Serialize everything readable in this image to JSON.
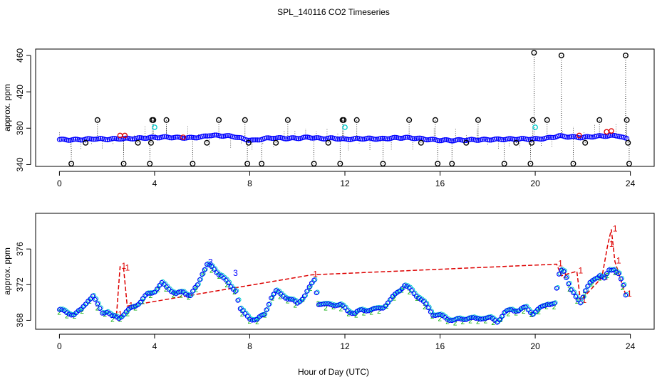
{
  "title": "SPL_140116  CO2 Timeseries",
  "xlabel": "Hour of Day (UTC)",
  "colors": {
    "black": "#000000",
    "red": "#dd0000",
    "blue": "#0000ff",
    "cyan": "#00cccc",
    "green": "#00aa00"
  },
  "chart_data": [
    {
      "type": "scatter",
      "name": "top-panel",
      "ylabel": "approx. ppm",
      "xlim": [
        -1,
        25
      ],
      "ylim": [
        338,
        467
      ],
      "xticks": [
        0,
        4,
        8,
        12,
        16,
        20,
        24
      ],
      "yticks": [
        340,
        380,
        420,
        460
      ],
      "baseline": [
        [
          0,
          367.5
        ],
        [
          0.5,
          367.2
        ],
        [
          1,
          367.6
        ],
        [
          1.5,
          368.4
        ],
        [
          2,
          367.8
        ],
        [
          2.5,
          368.5
        ],
        [
          3,
          368.6
        ],
        [
          3.5,
          369.2
        ],
        [
          4,
          369.8
        ],
        [
          4.5,
          370.2
        ],
        [
          5,
          369.6
        ],
        [
          5.5,
          369.4
        ],
        [
          6,
          370.4
        ],
        [
          6.3,
          372.2
        ],
        [
          6.7,
          371.8
        ],
        [
          7,
          371.6
        ],
        [
          7.4,
          370.6
        ],
        [
          7.8,
          367.8
        ],
        [
          8.2,
          366.4
        ],
        [
          8.6,
          368.6
        ],
        [
          9,
          369.4
        ],
        [
          9.5,
          368.8
        ],
        [
          10,
          369.0
        ],
        [
          10.5,
          370.0
        ],
        [
          11,
          368.6
        ],
        [
          11.5,
          369.0
        ],
        [
          12,
          367.8
        ],
        [
          12.5,
          368.4
        ],
        [
          13,
          368.6
        ],
        [
          13.5,
          368.2
        ],
        [
          14,
          369.2
        ],
        [
          14.5,
          369.6
        ],
        [
          15,
          369.0
        ],
        [
          15.5,
          367.6
        ],
        [
          16,
          366.8
        ],
        [
          16.5,
          366.6
        ],
        [
          17,
          367.0
        ],
        [
          17.5,
          367.2
        ],
        [
          18,
          367.4
        ],
        [
          18.5,
          367.8
        ],
        [
          19,
          368.0
        ],
        [
          19.5,
          368.2
        ],
        [
          20,
          368.0
        ],
        [
          20.5,
          369.0
        ],
        [
          21,
          371.4
        ],
        [
          21.5,
          370.4
        ],
        [
          22,
          369.8
        ],
        [
          22.5,
          371.0
        ],
        [
          23,
          371.6
        ],
        [
          23.5,
          371.8
        ],
        [
          23.8,
          368.5
        ]
      ],
      "black_outliers": [
        [
          0.5,
          341
        ],
        [
          1.1,
          364
        ],
        [
          1.6,
          389
        ],
        [
          2.7,
          341
        ],
        [
          3.3,
          364
        ],
        [
          3.8,
          341
        ],
        [
          3.85,
          364
        ],
        [
          3.9,
          389
        ],
        [
          3.95,
          389
        ],
        [
          4.5,
          389
        ],
        [
          5.6,
          341
        ],
        [
          6.2,
          364
        ],
        [
          6.7,
          389
        ],
        [
          7.8,
          389
        ],
        [
          7.9,
          341
        ],
        [
          7.95,
          364
        ],
        [
          8.5,
          341
        ],
        [
          9.1,
          364
        ],
        [
          9.6,
          389
        ],
        [
          10.7,
          341
        ],
        [
          11.3,
          364
        ],
        [
          11.8,
          341
        ],
        [
          11.9,
          389
        ],
        [
          11.95,
          389
        ],
        [
          12.5,
          389
        ],
        [
          13.6,
          341
        ],
        [
          14.7,
          389
        ],
        [
          15.2,
          364
        ],
        [
          15.8,
          389
        ],
        [
          15.9,
          341
        ],
        [
          16.5,
          341
        ],
        [
          17.1,
          364
        ],
        [
          17.6,
          389
        ],
        [
          18.7,
          341
        ],
        [
          19.2,
          364
        ],
        [
          19.8,
          341
        ],
        [
          19.85,
          364
        ],
        [
          19.9,
          389
        ],
        [
          19.95,
          463
        ],
        [
          20.5,
          389
        ],
        [
          21.1,
          460
        ],
        [
          21.6,
          341
        ],
        [
          22.1,
          364
        ],
        [
          22.7,
          389
        ],
        [
          23.8,
          460
        ],
        [
          23.85,
          389
        ],
        [
          23.9,
          364
        ],
        [
          23.95,
          341
        ]
      ],
      "red_points": [
        [
          2.55,
          372
        ],
        [
          2.75,
          372
        ],
        [
          5.2,
          370
        ],
        [
          21.85,
          372
        ],
        [
          23.0,
          376
        ],
        [
          23.2,
          377
        ]
      ],
      "cyan_points": [
        [
          4.0,
          381
        ],
        [
          12.0,
          381
        ],
        [
          20.0,
          381
        ]
      ]
    },
    {
      "type": "line",
      "name": "bottom-panel",
      "ylabel": "approx. ppm",
      "xlim": [
        -1,
        25
      ],
      "ylim": [
        367,
        380
      ],
      "xticks": [
        0,
        4,
        8,
        12,
        16,
        20,
        24
      ],
      "yticks": [
        368,
        372,
        376
      ],
      "series": [
        {
          "name": "minute-mean",
          "points": [
            [
              0,
              369.2
            ],
            [
              0.3,
              368.8
            ],
            [
              0.6,
              368.7
            ],
            [
              0.9,
              369.1
            ],
            [
              1.2,
              370.3
            ],
            [
              1.4,
              370.7
            ],
            [
              1.6,
              369.7
            ],
            [
              1.8,
              368.9
            ],
            [
              2.0,
              369.0
            ],
            [
              2.2,
              368.4
            ],
            [
              2.5,
              368.3
            ],
            [
              2.8,
              368.9
            ],
            [
              3.1,
              369.5
            ],
            [
              3.4,
              370.1
            ],
            [
              3.7,
              370.9
            ],
            [
              4.0,
              371.3
            ],
            [
              4.3,
              372.1
            ],
            [
              4.6,
              371.6
            ],
            [
              4.9,
              370.9
            ],
            [
              5.2,
              371.2
            ],
            [
              5.5,
              370.8
            ],
            [
              5.8,
              371.9
            ],
            [
              6.0,
              373.3
            ],
            [
              6.2,
              374.3
            ],
            [
              6.4,
              373.9
            ],
            [
              6.6,
              373.4
            ],
            [
              6.8,
              373.1
            ],
            [
              7.0,
              372.4
            ],
            [
              7.2,
              371.7
            ],
            [
              7.4,
              371.4
            ],
            [
              7.6,
              369.3
            ],
            [
              7.8,
              368.6
            ],
            [
              8.0,
              368.2
            ],
            [
              8.3,
              368.1
            ],
            [
              8.6,
              368.6
            ],
            [
              8.9,
              370.6
            ],
            [
              9.1,
              371.2
            ],
            [
              9.4,
              370.8
            ],
            [
              9.7,
              370.3
            ],
            [
              10.0,
              369.9
            ],
            [
              10.3,
              370.8
            ],
            [
              10.5,
              371.6
            ],
            [
              10.7,
              372.5
            ],
            [
              10.9,
              369.9
            ],
            [
              11.2,
              369.7
            ],
            [
              11.5,
              369.8
            ],
            [
              11.8,
              369.7
            ],
            [
              12.1,
              369.1
            ],
            [
              12.4,
              368.8
            ],
            [
              12.7,
              369.1
            ],
            [
              13.0,
              369.2
            ],
            [
              13.3,
              369.2
            ],
            [
              13.6,
              369.5
            ],
            [
              13.9,
              370.2
            ],
            [
              14.2,
              371.2
            ],
            [
              14.5,
              371.9
            ],
            [
              14.8,
              371.3
            ],
            [
              15.1,
              370.6
            ],
            [
              15.4,
              369.7
            ],
            [
              15.7,
              368.7
            ],
            [
              16.0,
              368.5
            ],
            [
              16.3,
              368.2
            ],
            [
              16.6,
              368.0
            ],
            [
              16.9,
              368.1
            ],
            [
              17.2,
              368.3
            ],
            [
              17.5,
              368.1
            ],
            [
              17.8,
              368.3
            ],
            [
              18.1,
              368.2
            ],
            [
              18.4,
              367.9
            ],
            [
              18.7,
              368.8
            ],
            [
              19.0,
              369.2
            ],
            [
              19.3,
              369.1
            ],
            [
              19.6,
              369.4
            ],
            [
              19.9,
              368.8
            ],
            [
              20.2,
              369.3
            ],
            [
              20.5,
              369.9
            ],
            [
              20.8,
              369.8
            ],
            [
              21.0,
              373.1
            ],
            [
              21.15,
              374.0
            ],
            [
              21.3,
              372.9
            ],
            [
              21.5,
              371.3
            ],
            [
              21.7,
              370.6
            ],
            [
              21.9,
              370.1
            ],
            [
              22.1,
              371.3
            ],
            [
              22.3,
              372.1
            ],
            [
              22.5,
              372.7
            ],
            [
              22.7,
              373.1
            ],
            [
              22.9,
              372.6
            ],
            [
              23.1,
              373.6
            ],
            [
              23.3,
              373.8
            ],
            [
              23.5,
              373.2
            ],
            [
              23.7,
              371.8
            ],
            [
              23.8,
              370.8
            ]
          ]
        },
        {
          "name": "raw-1",
          "points": [
            [
              2.4,
              368.6
            ],
            [
              2.55,
              374.0
            ],
            [
              2.7,
              373.8
            ],
            [
              2.85,
              369.6
            ],
            [
              10.6,
              373.1
            ],
            [
              20.9,
              374.3
            ],
            [
              21.1,
              373.0
            ],
            [
              21.75,
              373.5
            ],
            [
              21.9,
              370.2
            ],
            [
              22.8,
              372.8
            ],
            [
              23.05,
              376.5
            ],
            [
              23.2,
              378.2
            ],
            [
              23.35,
              374.6
            ],
            [
              23.8,
              370.9
            ]
          ]
        }
      ],
      "annotations": [
        {
          "text": "3",
          "x": 6.25,
          "y": 374.2
        },
        {
          "text": "3",
          "x": 7.3,
          "y": 373.0
        },
        {
          "text": "1",
          "x": 2.6,
          "y": 374.2
        },
        {
          "text": "1",
          "x": 23.2,
          "y": 379.2
        }
      ]
    }
  ]
}
